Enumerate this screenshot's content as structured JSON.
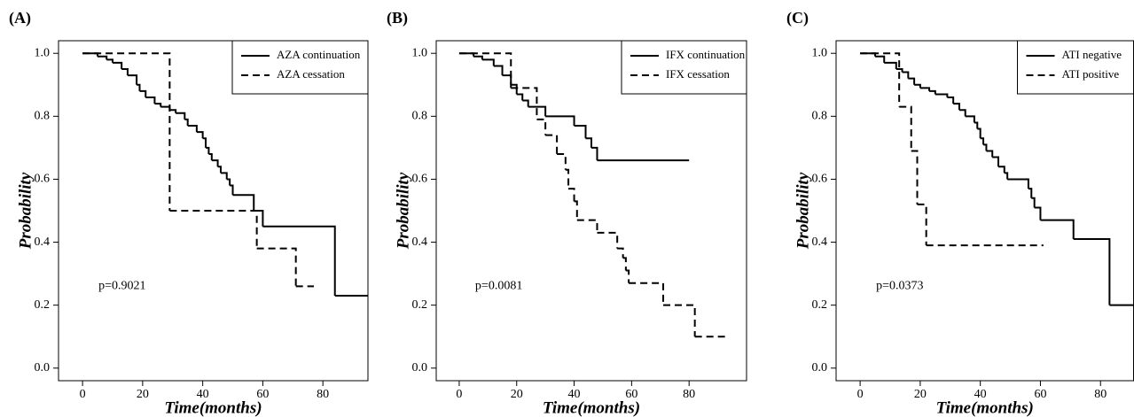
{
  "chart_data": [
    {
      "type": "line",
      "panel": "(A)",
      "annotation": "p=0.9021",
      "x_label": "Time(months)",
      "y_label": "Probability",
      "drawstyle": "steps-post",
      "legend": "upper right",
      "xlim": [
        -8,
        95
      ],
      "ylim": [
        -0.04,
        1.04
      ],
      "xticks": [
        0,
        20,
        40,
        60,
        80
      ],
      "yticks": [
        {
          "value": 0,
          "label": "0.0"
        },
        0.2,
        0.4,
        0.6,
        0.8,
        {
          "value": 1,
          "label": "1.0"
        }
      ],
      "series": [
        {
          "name": "AZA continuation",
          "color": "#000000",
          "dash": "solid",
          "x": [
            0,
            5,
            8,
            10,
            13,
            15,
            18,
            19,
            21,
            24,
            26,
            29,
            31,
            34,
            35,
            38,
            40,
            41,
            42,
            43,
            45,
            46,
            48,
            49,
            50,
            57,
            60,
            84,
            95
          ],
          "values": [
            1.0,
            0.99,
            0.98,
            0.97,
            0.95,
            0.93,
            0.9,
            0.88,
            0.86,
            0.84,
            0.83,
            0.82,
            0.81,
            0.79,
            0.77,
            0.75,
            0.73,
            0.7,
            0.68,
            0.66,
            0.64,
            0.62,
            0.6,
            0.58,
            0.55,
            0.5,
            0.45,
            0.23,
            0.23
          ]
        },
        {
          "name": "AZA cessation",
          "color": "#000000",
          "dash": "dashed",
          "x": [
            0,
            29,
            58,
            71,
            77
          ],
          "values": [
            1.0,
            0.5,
            0.38,
            0.26,
            0.26
          ]
        }
      ]
    },
    {
      "type": "line",
      "panel": "(B)",
      "annotation": "p=0.0081",
      "x_label": "Time(months)",
      "y_label": "Probability",
      "drawstyle": "steps-post",
      "legend": "upper right",
      "xlim": [
        -8,
        100
      ],
      "ylim": [
        -0.04,
        1.04
      ],
      "xticks": [
        0,
        20,
        40,
        60,
        80
      ],
      "yticks": [
        {
          "value": 0,
          "label": "0.0"
        },
        0.2,
        0.4,
        0.6,
        0.8,
        {
          "value": 1,
          "label": "1.0"
        }
      ],
      "series": [
        {
          "name": "IFX continuation",
          "color": "#000000",
          "dash": "solid",
          "x": [
            0,
            5,
            8,
            12,
            15,
            18,
            20,
            22,
            24,
            30,
            40,
            44,
            46,
            48,
            80
          ],
          "values": [
            1.0,
            0.99,
            0.98,
            0.96,
            0.93,
            0.9,
            0.87,
            0.85,
            0.83,
            0.8,
            0.77,
            0.73,
            0.7,
            0.66,
            0.66
          ]
        },
        {
          "name": "IFX cessation",
          "color": "#000000",
          "dash": "dashed",
          "x": [
            0,
            18,
            27,
            30,
            34,
            37,
            38,
            40,
            41,
            48,
            55,
            57,
            58,
            59,
            71,
            82,
            94
          ],
          "values": [
            1.0,
            0.89,
            0.79,
            0.74,
            0.68,
            0.63,
            0.57,
            0.53,
            0.47,
            0.43,
            0.38,
            0.35,
            0.31,
            0.27,
            0.2,
            0.1,
            0.1
          ]
        }
      ]
    },
    {
      "type": "line",
      "panel": "(C)",
      "annotation": "p=0.0373",
      "x_label": "Time(months)",
      "y_label": "Probability",
      "drawstyle": "steps-post",
      "legend": "upper right",
      "xlim": [
        -8,
        91
      ],
      "ylim": [
        -0.04,
        1.04
      ],
      "xticks": [
        0,
        20,
        40,
        60,
        80
      ],
      "yticks": [
        {
          "value": 0,
          "label": "0.0"
        },
        0.2,
        0.4,
        0.6,
        0.8,
        {
          "value": 1,
          "label": "1.0"
        }
      ],
      "series": [
        {
          "name": "ATI negative",
          "color": "#000000",
          "dash": "solid",
          "x": [
            0,
            5,
            8,
            12,
            14,
            16,
            18,
            20,
            23,
            25,
            29,
            31,
            33,
            35,
            38,
            39,
            40,
            41,
            42,
            44,
            46,
            48,
            49,
            56,
            57,
            58,
            60,
            71,
            83,
            91
          ],
          "values": [
            1.0,
            0.99,
            0.97,
            0.95,
            0.94,
            0.92,
            0.9,
            0.89,
            0.88,
            0.87,
            0.86,
            0.84,
            0.82,
            0.8,
            0.78,
            0.76,
            0.73,
            0.71,
            0.69,
            0.67,
            0.64,
            0.62,
            0.6,
            0.57,
            0.54,
            0.51,
            0.47,
            0.41,
            0.2,
            0.2
          ]
        },
        {
          "name": "ATI positive",
          "color": "#000000",
          "dash": "dashed",
          "x": [
            0,
            13,
            17,
            19,
            22,
            61
          ],
          "values": [
            1.0,
            0.83,
            0.69,
            0.52,
            0.39,
            0.39
          ]
        }
      ]
    }
  ]
}
